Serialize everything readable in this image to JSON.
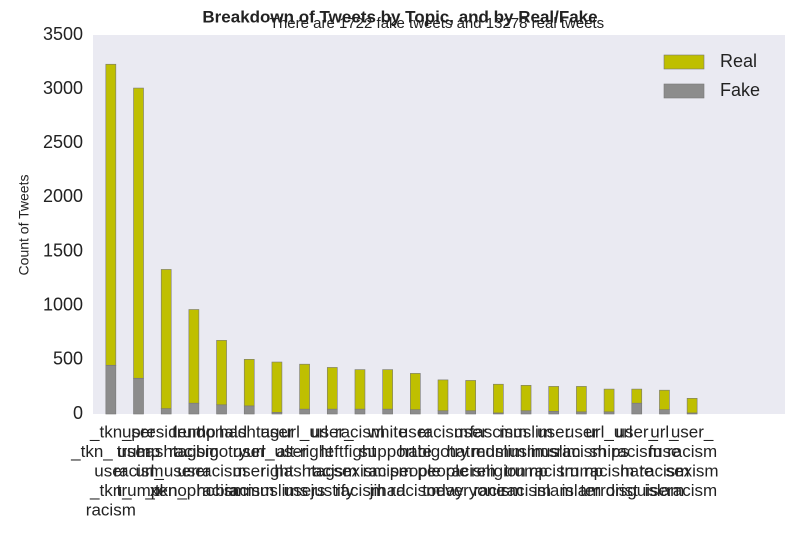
{
  "chart_data": {
    "type": "stacked_bar",
    "title": "Breakdown of Tweets by Topic, and by Real/Fake",
    "subtitle": "There are 1722 fake tweets and 13278 real tweets",
    "y_label": "Count of Tweets",
    "categories": [
      [
        "_tkn_",
        "_tkn_ user",
        "user",
        "_tkn_",
        "racism"
      ],
      [
        "user",
        "trump",
        "racism",
        "trump"
      ],
      [
        "president",
        "hashtag",
        "url_user",
        "_tkn_"
      ],
      [
        "trump",
        "racism",
        "user",
        "xenophobia"
      ],
      [
        "donald",
        "bigotry",
        "racism",
        "racism"
      ],
      [
        "hashtag",
        "user",
        "user",
        "racism"
      ],
      [
        "user",
        "url_user",
        "right",
        "muslims"
      ],
      [
        "url_url",
        "alt-right",
        "hashtag",
        "users"
      ],
      [
        "user_",
        "left",
        "racism",
        "justify"
      ],
      [
        "racism",
        "fight",
        "sexism",
        "racism"
      ],
      [
        "white",
        "support",
        "racism",
        "jihad"
      ],
      [
        "user",
        "hate",
        "people",
        "racism"
      ],
      [
        "racism",
        "bigotry",
        "people",
        "today"
      ],
      [
        "user",
        "hatred",
        "racism",
        "everyone"
      ],
      [
        "fascism",
        "muslim",
        "religion",
        "racism"
      ],
      [
        "muslim",
        "muslims",
        "trump",
        "racism"
      ],
      [
        "user",
        "muslim",
        "racism",
        "islam"
      ],
      [
        "user",
        "racism",
        "trump",
        "islam"
      ],
      [
        "url_url",
        "ships",
        "racism",
        "terrorist"
      ],
      [
        "user_",
        "racism",
        "hate",
        "disguise"
      ],
      [
        "url_",
        "fuse",
        "racism",
        "islam"
      ],
      [
        "user_",
        "racism",
        "sexism",
        "racism"
      ]
    ],
    "series": [
      {
        "name": "Fake",
        "color": "#8c8c8c",
        "values": [
          450,
          330,
          50,
          100,
          85,
          75,
          15,
          45,
          45,
          45,
          45,
          40,
          30,
          30,
          10,
          30,
          25,
          20,
          20,
          100,
          40,
          10
        ]
      },
      {
        "name": "Real",
        "color": "#bfbf00",
        "values": [
          2780,
          2680,
          1285,
          865,
          595,
          430,
          465,
          415,
          385,
          365,
          365,
          335,
          285,
          280,
          265,
          235,
          230,
          235,
          210,
          130,
          180,
          135
        ]
      }
    ],
    "ylim": [
      0,
      3500
    ],
    "yticks": [
      0,
      500,
      1000,
      1500,
      2000,
      2500,
      3000,
      3500
    ],
    "grid": false,
    "legend": "upper right"
  }
}
